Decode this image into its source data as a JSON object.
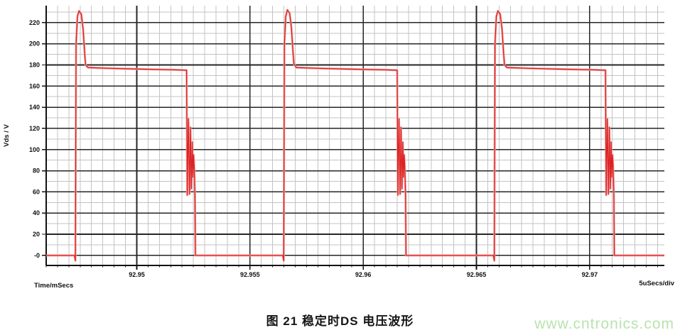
{
  "page": {
    "caption": "图 21 稳定时DS 电压波形",
    "watermark": "www.cntronics.com"
  },
  "colors": {
    "background": "#ffffff",
    "trace": "#dc2323",
    "trace_halo": "#f2a4a4",
    "grid_major": "#262626",
    "grid_minor": "#c3c3c3",
    "axis": "#111111",
    "watermark": "#b9e3ae"
  },
  "chart_data": {
    "type": "line",
    "title": "",
    "ylabel": "Vds / V",
    "xlabel_left": "Time/mSecs",
    "xlabel_right": "5uSecs/div",
    "xlim": [
      92.946,
      92.9733
    ],
    "ylim": [
      -9.5,
      236
    ],
    "grid": "on",
    "legend": "none",
    "x_major_ticks": [
      92.95,
      92.955,
      92.96,
      92.965,
      92.97
    ],
    "x_tick_labels": [
      "92.95",
      "92.955",
      "92.96",
      "92.965",
      "92.97"
    ],
    "x_minor_step": 0.0005,
    "y_major_ticks": [
      0,
      20,
      40,
      60,
      80,
      100,
      120,
      140,
      160,
      180,
      200,
      220
    ],
    "y_tick_labels": [
      "-0",
      "20",
      "40",
      "60",
      "80",
      "100",
      "120",
      "140",
      "160",
      "180",
      "200",
      "220"
    ],
    "y_minor_step": 10,
    "waveform_summary": {
      "description": "Periodic drain-source voltage: 0 V baseline, turn-off overshoot to ~231 V, plateau ~175-177 V for ~5 us, falling edge with damped ringing between ~57 V and ~129 V, then 0 V",
      "period_us": 9.2,
      "plateau_v": 175,
      "peak_v": 232,
      "baseline_v": 0,
      "ring_v_range": [
        57,
        129
      ]
    },
    "series": [
      {
        "name": "Vds",
        "color": "#dc2323",
        "points": [
          [
            92.946,
            0
          ],
          [
            92.94725,
            0
          ],
          [
            92.94729,
            -5
          ],
          [
            92.94732,
            200
          ],
          [
            92.94738,
            226
          ],
          [
            92.94745,
            231
          ],
          [
            92.94755,
            228
          ],
          [
            92.94763,
            214
          ],
          [
            92.9477,
            191
          ],
          [
            92.94774,
            180
          ],
          [
            92.94785,
            177.5
          ],
          [
            92.9488,
            176.8
          ],
          [
            92.9503,
            176.0
          ],
          [
            92.9517,
            175.4
          ],
          [
            92.9522,
            175
          ],
          [
            92.95223,
            57
          ],
          [
            92.95228,
            129
          ],
          [
            92.95233,
            58
          ],
          [
            92.95237,
            121
          ],
          [
            92.95241,
            63
          ],
          [
            92.95245,
            107
          ],
          [
            92.95248,
            74
          ],
          [
            92.95251,
            95
          ],
          [
            92.95254,
            82
          ],
          [
            92.95257,
            57
          ],
          [
            92.95259,
            0
          ],
          [
            92.95645,
            0
          ],
          [
            92.95649,
            -5
          ],
          [
            92.95652,
            200
          ],
          [
            92.95658,
            226
          ],
          [
            92.95665,
            232
          ],
          [
            92.95675,
            229
          ],
          [
            92.95683,
            215
          ],
          [
            92.9569,
            192
          ],
          [
            92.95694,
            181
          ],
          [
            92.95705,
            177.5
          ],
          [
            92.958,
            176.8
          ],
          [
            92.9595,
            176.0
          ],
          [
            92.961,
            175.4
          ],
          [
            92.9615,
            175
          ],
          [
            92.96153,
            57
          ],
          [
            92.96158,
            129
          ],
          [
            92.96163,
            58
          ],
          [
            92.96167,
            121
          ],
          [
            92.96171,
            63
          ],
          [
            92.96175,
            107
          ],
          [
            92.96178,
            74
          ],
          [
            92.96181,
            95
          ],
          [
            92.96184,
            82
          ],
          [
            92.96187,
            57
          ],
          [
            92.96189,
            0
          ],
          [
            92.96575,
            0
          ],
          [
            92.96579,
            -5
          ],
          [
            92.96582,
            200
          ],
          [
            92.96588,
            226
          ],
          [
            92.96595,
            231
          ],
          [
            92.96605,
            228
          ],
          [
            92.96613,
            214
          ],
          [
            92.9662,
            191
          ],
          [
            92.96624,
            180
          ],
          [
            92.96635,
            177.5
          ],
          [
            92.9673,
            176.8
          ],
          [
            92.9688,
            176.0
          ],
          [
            92.9702,
            175.4
          ],
          [
            92.9707,
            175
          ],
          [
            92.97073,
            57
          ],
          [
            92.97078,
            129
          ],
          [
            92.97083,
            58
          ],
          [
            92.97087,
            121
          ],
          [
            92.97091,
            63
          ],
          [
            92.97095,
            107
          ],
          [
            92.97098,
            74
          ],
          [
            92.97101,
            95
          ],
          [
            92.97104,
            82
          ],
          [
            92.97107,
            57
          ],
          [
            92.97109,
            0
          ],
          [
            92.9733,
            0
          ]
        ]
      }
    ]
  }
}
